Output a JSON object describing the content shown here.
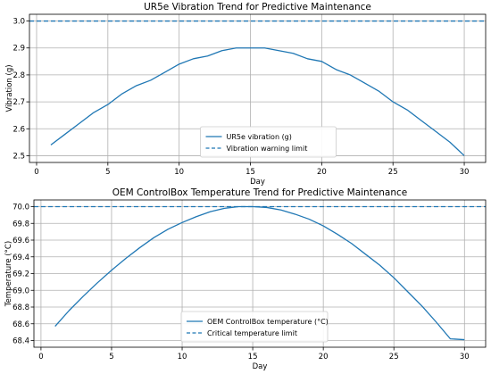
{
  "chart_data": [
    {
      "type": "line",
      "title": "UR5e Vibration Trend for Predictive Maintenance",
      "xlabel": "Day",
      "ylabel": "Vibration (g)",
      "xlim": [
        -0.5,
        31.5
      ],
      "ylim": [
        2.475,
        3.025
      ],
      "xticks": [
        0,
        5,
        10,
        15,
        20,
        25,
        30
      ],
      "yticks": [
        2.5,
        2.6,
        2.7,
        2.8,
        2.9,
        3.0
      ],
      "ytick_labels": [
        "2.5",
        "2.6",
        "2.7",
        "2.8",
        "2.9",
        "3.0"
      ],
      "grid": true,
      "legend_position": "lower-center",
      "series": [
        {
          "name": "UR5e vibration (g)",
          "style": "solid",
          "color": "#1f77b4",
          "x": [
            1,
            2,
            3,
            4,
            5,
            6,
            7,
            8,
            9,
            10,
            11,
            12,
            13,
            14,
            15,
            16,
            17,
            18,
            19,
            20,
            21,
            22,
            23,
            24,
            25,
            26,
            27,
            28,
            29,
            30
          ],
          "y": [
            2.54,
            2.58,
            2.62,
            2.66,
            2.69,
            2.73,
            2.76,
            2.78,
            2.81,
            2.84,
            2.86,
            2.87,
            2.89,
            2.9,
            2.9,
            2.9,
            2.89,
            2.88,
            2.86,
            2.85,
            2.82,
            2.8,
            2.77,
            2.74,
            2.7,
            2.67,
            2.63,
            2.59,
            2.55,
            2.5
          ]
        },
        {
          "name": "Vibration warning limit",
          "style": "dashed",
          "color": "#1f77b4",
          "y_constant": 3.0
        }
      ]
    },
    {
      "type": "line",
      "title": "OEM ControlBox Temperature Trend for Predictive Maintenance",
      "xlabel": "Day",
      "ylabel": "Temperature (°C)",
      "xlim": [
        -0.5,
        31.5
      ],
      "ylim": [
        68.32,
        70.08
      ],
      "xticks": [
        0,
        5,
        10,
        15,
        20,
        25,
        30
      ],
      "yticks": [
        68.4,
        68.6,
        68.8,
        69.0,
        69.2,
        69.4,
        69.6,
        69.8,
        70.0
      ],
      "ytick_labels": [
        "68.4",
        "68.6",
        "68.8",
        "69.0",
        "69.2",
        "69.4",
        "69.6",
        "69.8",
        "70.0"
      ],
      "grid": true,
      "legend_position": "lower-center",
      "series": [
        {
          "name": "OEM ControlBox temperature (°C)",
          "style": "solid",
          "color": "#1f77b4",
          "x": [
            1,
            2,
            3,
            4,
            5,
            6,
            7,
            8,
            9,
            10,
            11,
            12,
            13,
            14,
            15,
            16,
            17,
            18,
            19,
            20,
            21,
            22,
            23,
            24,
            25,
            26,
            27,
            28,
            29,
            30
          ],
          "y": [
            68.57,
            68.76,
            68.93,
            69.09,
            69.24,
            69.38,
            69.51,
            69.63,
            69.73,
            69.81,
            69.88,
            69.94,
            69.98,
            70.0,
            70.0,
            69.99,
            69.96,
            69.91,
            69.85,
            69.77,
            69.67,
            69.56,
            69.43,
            69.3,
            69.15,
            68.98,
            68.81,
            68.62,
            68.42,
            68.41
          ]
        },
        {
          "name": "Critical temperature limit",
          "style": "dashed",
          "color": "#1f77b4",
          "y_constant": 70.0
        }
      ]
    }
  ]
}
